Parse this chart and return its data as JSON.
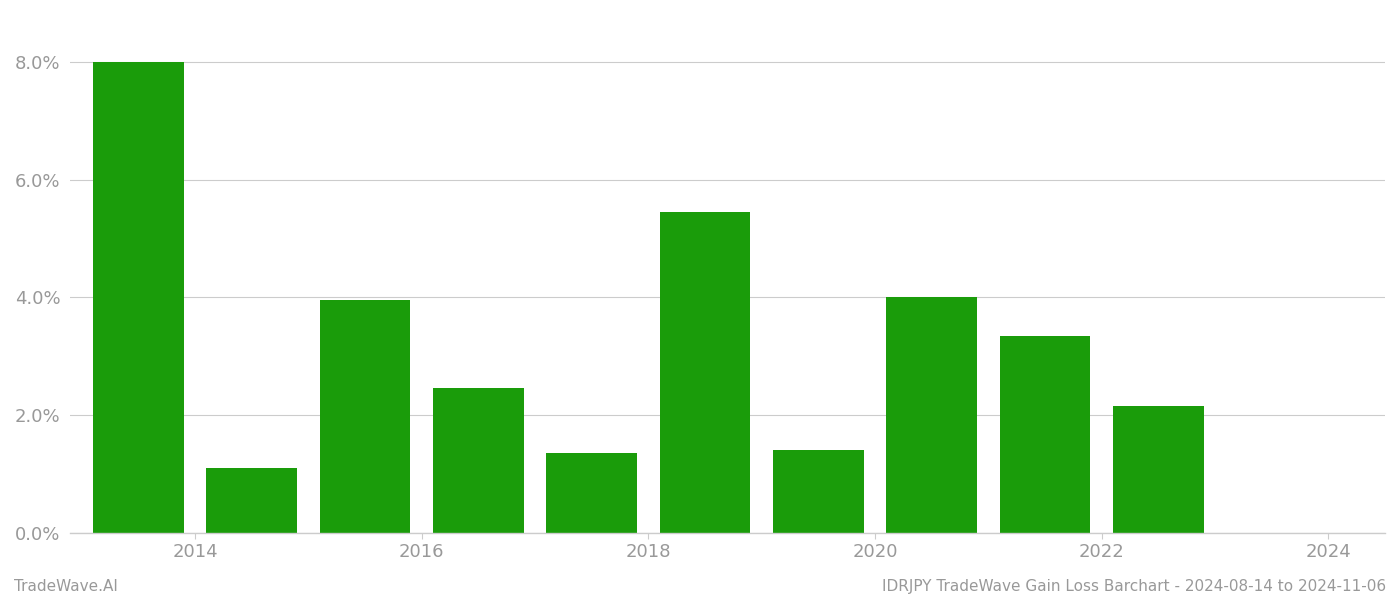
{
  "bar_centers": [
    2013.5,
    2014.5,
    2015.5,
    2016.5,
    2017.5,
    2018.5,
    2019.5,
    2020.5,
    2021.5,
    2022.5
  ],
  "values": [
    0.08,
    0.011,
    0.0395,
    0.0245,
    0.0135,
    0.0545,
    0.014,
    0.04,
    0.0335,
    0.0215
  ],
  "bar_color": "#1a9c0a",
  "bar_width": 0.8,
  "background_color": "#ffffff",
  "grid_color": "#cccccc",
  "text_color": "#999999",
  "ylim": [
    0,
    0.088
  ],
  "yticks": [
    0.0,
    0.02,
    0.04,
    0.06,
    0.08
  ],
  "xticks": [
    2014,
    2016,
    2018,
    2020,
    2022,
    2024
  ],
  "xlim": [
    2012.9,
    2024.5
  ],
  "footer_left": "TradeWave.AI",
  "footer_right": "IDRJPY TradeWave Gain Loss Barchart - 2024-08-14 to 2024-11-06",
  "footer_fontsize": 11,
  "tick_fontsize": 13,
  "spine_color": "#cccccc"
}
